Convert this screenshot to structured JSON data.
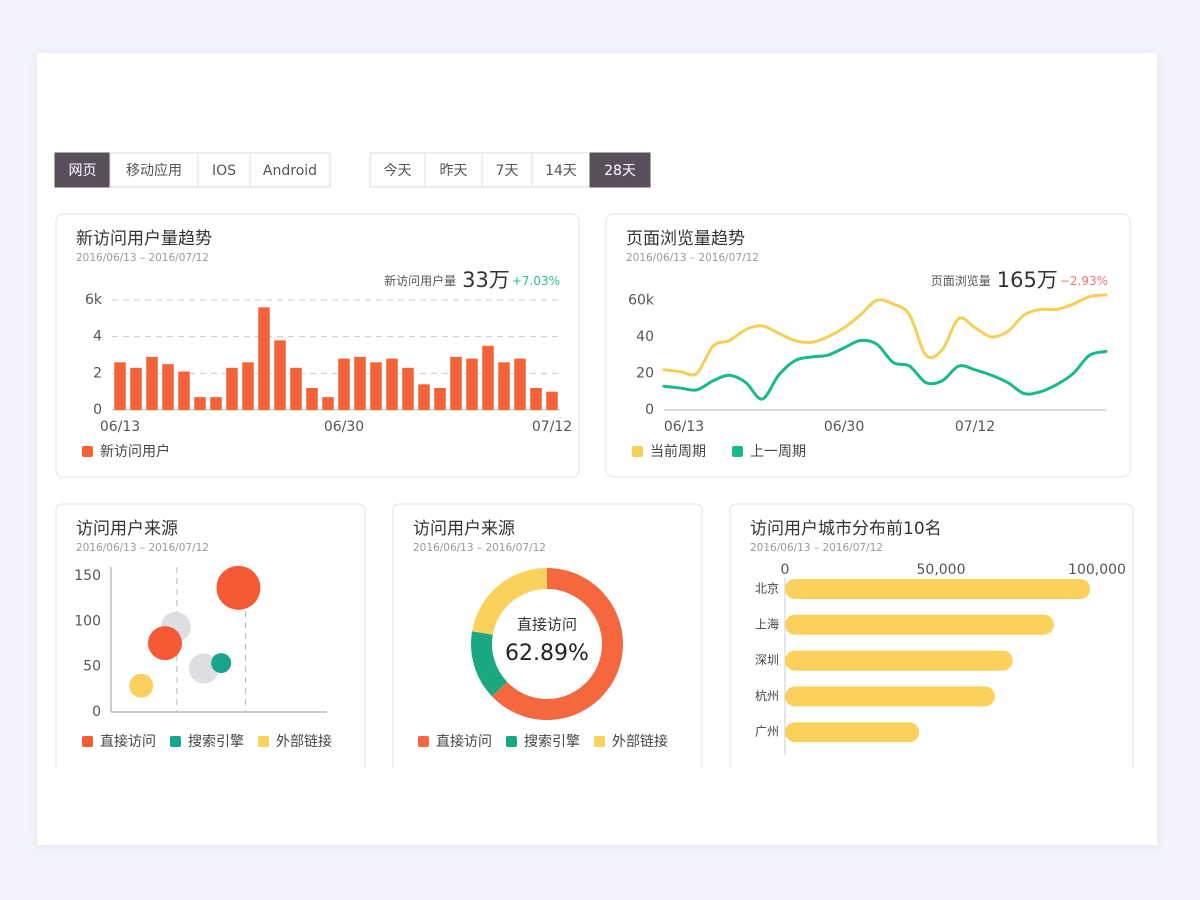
{
  "tabs": {
    "platform": {
      "items": [
        "网页",
        "移动应用",
        "IOS",
        "Android"
      ],
      "active": 0
    },
    "range": {
      "items": [
        "今天",
        "昨天",
        "7天",
        "14天",
        "28天"
      ],
      "active": 4
    }
  },
  "chart_data": [
    {
      "type": "bar",
      "title": "新访问用户量趋势",
      "subtitle": "2016/06/13 – 2016/07/12",
      "stat_label": "新访问用户量",
      "stat_value": "33万",
      "stat_change": "+7.03%",
      "stat_change_color": "#2bbf8e",
      "categories": [
        "06/13",
        null,
        null,
        null,
        null,
        null,
        null,
        null,
        null,
        null,
        null,
        null,
        null,
        null,
        "06/30",
        null,
        null,
        null,
        null,
        null,
        null,
        null,
        null,
        null,
        null,
        null,
        null,
        "07/12"
      ],
      "series": [
        {
          "name": "新访问用户",
          "color": "#f4623a",
          "values": [
            2.6,
            2.3,
            2.9,
            2.5,
            2.1,
            0.7,
            0.7,
            2.3,
            2.6,
            5.6,
            3.8,
            2.3,
            1.2,
            0.7,
            2.8,
            2.9,
            2.6,
            2.8,
            2.3,
            1.4,
            1.2,
            2.9,
            2.8,
            3.5,
            2.6,
            2.8,
            1.2,
            1.0
          ]
        }
      ],
      "ylim": [
        0,
        6
      ],
      "yticks": [
        0,
        2,
        4,
        {
          "value": 6,
          "label": "6k"
        }
      ],
      "grid": true
    },
    {
      "type": "line",
      "title": "页面浏览量趋势",
      "subtitle": "2016/06/13 – 2016/07/12",
      "stat_label": "页面浏览量",
      "stat_value": "165万",
      "stat_change": "−2.93%",
      "stat_change_color": "#f0727a",
      "categories": [
        "06/13",
        null,
        null,
        null,
        null,
        null,
        null,
        null,
        null,
        null,
        null,
        "06/30",
        null,
        null,
        null,
        null,
        null,
        null,
        null,
        "07/12",
        null,
        null,
        null,
        null,
        null,
        null,
        null,
        null
      ],
      "series": [
        {
          "name": "当前周期",
          "color": "#f7cf58",
          "values": [
            22,
            21,
            20,
            35,
            38,
            44,
            46,
            42,
            38,
            37,
            40,
            45,
            52,
            60,
            58,
            52,
            30,
            33,
            50,
            45,
            40,
            43,
            52,
            55,
            55,
            58,
            62,
            63
          ]
        },
        {
          "name": "上一周期",
          "color": "#19b98c",
          "values": [
            13,
            12,
            11,
            16,
            19,
            15,
            6,
            19,
            27,
            29,
            30,
            34,
            38,
            36,
            26,
            24,
            15,
            16,
            24,
            22,
            19,
            15,
            9,
            10,
            14,
            20,
            30,
            32
          ]
        }
      ],
      "ylim": [
        0,
        64
      ],
      "yticks": [
        0,
        20,
        40,
        {
          "value": 60,
          "label": "60k"
        }
      ],
      "grid": false
    },
    {
      "type": "scatter",
      "title": "访问用户来源",
      "subtitle": "2016/06/13 – 2016/07/12",
      "xlim": [
        0,
        100
      ],
      "ylim": [
        0,
        160
      ],
      "yticks": [
        0,
        50,
        100,
        150
      ],
      "series": [
        {
          "color": "#dedee2",
          "x": [
            30,
            43
          ],
          "values": [
            94,
            48
          ],
          "sizes": [
            15,
            15
          ]
        },
        {
          "name": "直接访问",
          "color": "#f45a34",
          "x": [
            25,
            59
          ],
          "values": [
            76,
            137
          ],
          "sizes": [
            17,
            22
          ]
        },
        {
          "name": "搜索引擎",
          "color": "#17a689",
          "x": [
            51
          ],
          "values": [
            54
          ],
          "sizes": [
            10
          ]
        },
        {
          "name": "外部链接",
          "color": "#fad15d",
          "x": [
            14
          ],
          "values": [
            29
          ],
          "sizes": [
            12
          ]
        }
      ]
    },
    {
      "type": "pie",
      "title": "访问用户来源",
      "subtitle": "2016/06/13 – 2016/07/12",
      "donut": true,
      "categories": [
        "直接访问",
        "搜索引擎",
        "外部链接"
      ],
      "values": [
        62.89,
        14.8,
        22.31
      ],
      "value_labels": [
        "62.89%",
        null,
        null
      ],
      "colors": [
        "#f5673f",
        "#1aa882",
        "#fad15d"
      ]
    },
    {
      "type": "barh",
      "title": "访问用户城市分布前10名",
      "subtitle": "2016/06/13 – 2016/07/12",
      "categories": [
        "北京",
        "上海",
        "深圳",
        "杭州",
        "广州"
      ],
      "values": [
        97800,
        86200,
        73000,
        67300,
        43000
      ],
      "color": "#fcd15b",
      "xlim": [
        0,
        100000
      ],
      "xticks": [
        0,
        {
          "value": 50000,
          "label": "50,000"
        },
        {
          "value": 100000,
          "label": "100,000"
        }
      ]
    }
  ]
}
